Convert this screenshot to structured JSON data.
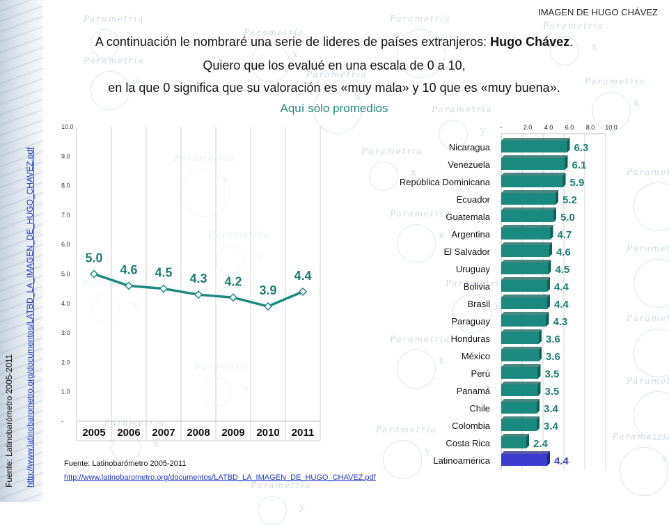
{
  "header": {
    "tag": "IMAGEN DE HUGO CHÁVEZ",
    "line1_pre": "A continuación le nombraré una serie de lideres de países extranjeros: ",
    "line1_bold": "Hugo Chávez",
    "line1_post": ".",
    "line2": "Quiero que los evalué en una escala de 0 a 10,",
    "line3": "en la que 0 significa que su valoración es «muy mala» y 10 que es «muy buena».",
    "subtitle": "Aquí sólo promedios"
  },
  "watermark": "Parametria",
  "sources": {
    "text": "Fuente: Latinobarómetro 2005-2011",
    "url": "http://www.latinobarometro.org/documentos/LATBD_LA_IMAGEN_DE_HUGO_CHAVEZ.pdf"
  },
  "colors": {
    "line": "#1b8a7e",
    "bar": "#1b8a7e",
    "bar_dark": "#0f5f57",
    "highlight_bar": "#3b3bd0",
    "highlight_dark": "#22228a",
    "label": "#1b7f74"
  },
  "chart_data": [
    {
      "type": "line",
      "title": "",
      "x": [
        "2005",
        "2006",
        "2007",
        "2008",
        "2009",
        "2010",
        "2011"
      ],
      "series": [
        {
          "values": [
            5.0,
            4.6,
            4.5,
            4.3,
            4.2,
            3.9,
            4.4
          ]
        }
      ],
      "data_labels": [
        "5.0",
        "4.6",
        "4.5",
        "4.3",
        "4.2",
        "3.9",
        "4.4"
      ],
      "y_ticks": [
        "-",
        "1.0",
        "2.0",
        "3.0",
        "4.0",
        "5.0",
        "6.0",
        "7.0",
        "8.0",
        "9.0",
        "10.0"
      ],
      "ylim": [
        0,
        10
      ],
      "grid": "vertical"
    },
    {
      "type": "bar",
      "orientation": "horizontal",
      "categories": [
        "Nicaragua",
        "Venezuela",
        "República Dominicana",
        "Ecuador",
        "Guatemala",
        "Argentina",
        "El Salvador",
        "Uruguay",
        "Bolivia",
        "Brasil",
        "Paraguay",
        "Honduras",
        "México",
        "Perú",
        "Panamá",
        "Chile",
        "Colombia",
        "Costa Rica",
        "Latinoamérica"
      ],
      "values": [
        6.3,
        6.1,
        5.9,
        5.2,
        5.0,
        4.7,
        4.6,
        4.5,
        4.4,
        4.4,
        4.3,
        3.6,
        3.6,
        3.5,
        3.5,
        3.4,
        3.4,
        2.4,
        4.4
      ],
      "data_labels": [
        "6.3",
        "6.1",
        "5.9",
        "5.2",
        "5.0",
        "4.7",
        "4.6",
        "4.5",
        "4.4",
        "4.4",
        "4.3",
        "3.6",
        "3.6",
        "3.5",
        "3.5",
        "3.4",
        "3.4",
        "2.4",
        "4.4"
      ],
      "highlight": "Latinoamérica",
      "x_ticks": [
        "-",
        "2.0",
        "4.0",
        "6.0",
        "8.0",
        "10.0"
      ],
      "xlim": [
        0,
        10
      ],
      "grid": "vertical",
      "axis_position": "top"
    }
  ]
}
